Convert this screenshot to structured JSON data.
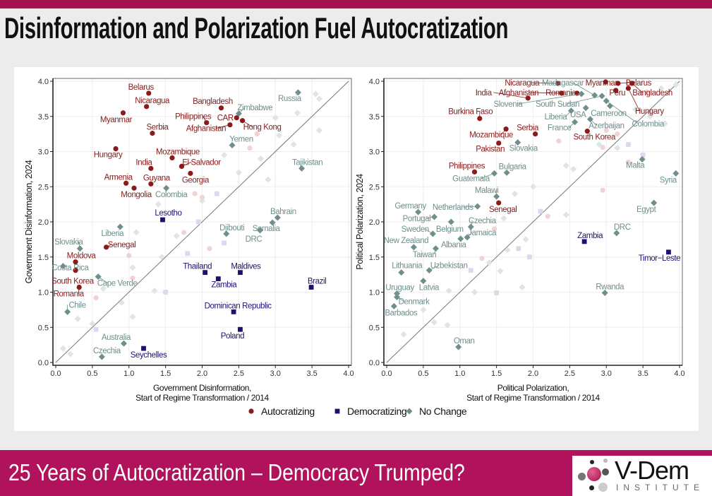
{
  "slide": {
    "title": "Disinformation and Polarization Fuel Autocratization",
    "footer_text": "25 Years of Autocratization – Democracy Trumped?",
    "logo_name": "V-Dem",
    "logo_sub": "INSTITUTE",
    "accent_color": "#b0135b"
  },
  "legend": {
    "items": [
      {
        "label": "Autocratizing",
        "group": "A",
        "shape": "circle",
        "color": "#8b1a1a"
      },
      {
        "label": "Democratizing",
        "group": "D",
        "shape": "square",
        "color": "#1f1070"
      },
      {
        "label": "No Change",
        "group": "N",
        "shape": "diamond",
        "color": "#6e8f8c"
      }
    ],
    "placement": "bottom"
  },
  "chart_data": [
    {
      "type": "scatter",
      "xlabel": [
        "Government Disinformation,",
        "Start of Regime Transformation / 2014"
      ],
      "ylabel": "Government Disinformation, 2024",
      "xlim": [
        0,
        4
      ],
      "ylim": [
        0,
        4
      ],
      "ticks": [
        "0.0",
        "0.5",
        "1.0",
        "1.5",
        "2.0",
        "2.5",
        "3.0",
        "3.5",
        "4.0"
      ],
      "grid": true,
      "diagonal_reference_line": true,
      "points": [
        {
          "label": "Belarus",
          "g": "A",
          "x": 1.27,
          "y": 3.83
        },
        {
          "label": "Nicaragua",
          "g": "A",
          "x": 1.24,
          "y": 3.64
        },
        {
          "label": "Myanmar",
          "g": "A",
          "x": 0.92,
          "y": 3.55
        },
        {
          "label": "Serbia",
          "g": "A",
          "x": 1.32,
          "y": 3.26
        },
        {
          "label": "Bangladesh",
          "g": "A",
          "x": 2.26,
          "y": 3.62
        },
        {
          "label": "Philippines",
          "g": "A",
          "x": 2.06,
          "y": 3.41
        },
        {
          "label": "CAR",
          "g": "A",
          "x": 2.47,
          "y": 3.48
        },
        {
          "label": "Afghanistan",
          "g": "A",
          "x": 2.38,
          "y": 3.38
        },
        {
          "label": "Hong Kong",
          "g": "A",
          "x": 2.55,
          "y": 3.44
        },
        {
          "label": "Hungary",
          "g": "A",
          "x": 0.82,
          "y": 3.04
        },
        {
          "label": "Mozambique",
          "g": "A",
          "x": 1.59,
          "y": 2.91
        },
        {
          "label": "India",
          "g": "A",
          "x": 1.3,
          "y": 2.76
        },
        {
          "label": "El Salvador",
          "g": "A",
          "x": 1.72,
          "y": 2.79
        },
        {
          "label": "Armenia",
          "g": "A",
          "x": 0.96,
          "y": 2.55
        },
        {
          "label": "Guyana",
          "g": "A",
          "x": 1.3,
          "y": 2.54
        },
        {
          "label": "Georgia",
          "g": "A",
          "x": 1.84,
          "y": 2.69
        },
        {
          "label": "Mongolia",
          "g": "A",
          "x": 1.07,
          "y": 2.48
        },
        {
          "label": "Senegal",
          "g": "A",
          "x": 0.69,
          "y": 1.64
        },
        {
          "label": "Moldova",
          "g": "A",
          "x": 0.27,
          "y": 1.43
        },
        {
          "label": "South Korea",
          "g": "A",
          "x": 0.27,
          "y": 1.31
        },
        {
          "label": "Romania",
          "g": "A",
          "x": 0.32,
          "y": 1.07
        },
        {
          "label": "Lesotho",
          "g": "D",
          "x": 1.46,
          "y": 2.03
        },
        {
          "label": "Thailand",
          "g": "D",
          "x": 2.04,
          "y": 1.28
        },
        {
          "label": "Zambia",
          "g": "D",
          "x": 2.22,
          "y": 1.19
        },
        {
          "label": "Maldives",
          "g": "D",
          "x": 2.52,
          "y": 1.28
        },
        {
          "label": "Brazil",
          "g": "D",
          "x": 3.49,
          "y": 1.07
        },
        {
          "label": "Dominican Republic",
          "g": "D",
          "x": 2.43,
          "y": 0.72
        },
        {
          "label": "Poland",
          "g": "D",
          "x": 2.52,
          "y": 0.47
        },
        {
          "label": "Seychelles",
          "g": "D",
          "x": 1.2,
          "y": 0.2
        },
        {
          "label": "Russia",
          "g": "N",
          "x": 3.31,
          "y": 3.84
        },
        {
          "label": "Zimbabwe",
          "g": "N",
          "x": 2.5,
          "y": 3.54
        },
        {
          "label": "Yemen",
          "g": "N",
          "x": 2.41,
          "y": 3.09
        },
        {
          "label": "Tajikistan",
          "g": "N",
          "x": 3.36,
          "y": 2.76
        },
        {
          "label": "Colombia",
          "g": "N",
          "x": 1.51,
          "y": 2.48
        },
        {
          "label": "Bahrain",
          "g": "N",
          "x": 3.03,
          "y": 2.06
        },
        {
          "label": "Somalia",
          "g": "N",
          "x": 2.96,
          "y": 1.99
        },
        {
          "label": "DRC",
          "g": "N",
          "x": 2.79,
          "y": 1.88
        },
        {
          "label": "Djibouti",
          "g": "N",
          "x": 2.33,
          "y": 1.83
        },
        {
          "label": "Liberia",
          "g": "N",
          "x": 0.88,
          "y": 1.93
        },
        {
          "label": "Slovakia",
          "g": "N",
          "x": 0.33,
          "y": 1.62
        },
        {
          "label": "Costa Rica",
          "g": "N",
          "x": 0.1,
          "y": 1.37
        },
        {
          "label": "Cape Verde",
          "g": "N",
          "x": 0.58,
          "y": 1.22
        },
        {
          "label": "Chile",
          "g": "N",
          "x": 0.16,
          "y": 0.72
        },
        {
          "label": "Australia",
          "g": "N",
          "x": 0.93,
          "y": 0.27
        },
        {
          "label": "Czechia",
          "g": "N",
          "x": 0.63,
          "y": 0.08
        }
      ],
      "faded_points": [
        {
          "g": "N",
          "x": 3.55,
          "y": 3.82
        },
        {
          "g": "N",
          "x": 3.6,
          "y": 3.75
        },
        {
          "g": "N",
          "x": 3.3,
          "y": 3.55
        },
        {
          "g": "N",
          "x": 3.0,
          "y": 3.48
        },
        {
          "g": "N",
          "x": 3.05,
          "y": 3.23
        },
        {
          "g": "N",
          "x": 3.25,
          "y": 3.1
        },
        {
          "g": "N",
          "x": 3.6,
          "y": 3.3
        },
        {
          "g": "N",
          "x": 2.3,
          "y": 2.95
        },
        {
          "g": "N",
          "x": 2.8,
          "y": 2.9
        },
        {
          "g": "N",
          "x": 2.9,
          "y": 2.6
        },
        {
          "g": "N",
          "x": 2.5,
          "y": 2.7
        },
        {
          "g": "N",
          "x": 2.0,
          "y": 2.3
        },
        {
          "g": "N",
          "x": 1.4,
          "y": 2.25
        },
        {
          "g": "N",
          "x": 1.65,
          "y": 1.8
        },
        {
          "g": "N",
          "x": 1.1,
          "y": 1.85
        },
        {
          "g": "N",
          "x": 1.45,
          "y": 1.5
        },
        {
          "g": "N",
          "x": 1.05,
          "y": 1.35
        },
        {
          "g": "N",
          "x": 0.65,
          "y": 1.05
        },
        {
          "g": "N",
          "x": 0.9,
          "y": 0.85
        },
        {
          "g": "N",
          "x": 0.3,
          "y": 0.62
        },
        {
          "g": "N",
          "x": 0.1,
          "y": 0.2
        },
        {
          "g": "N",
          "x": 0.2,
          "y": 0.12
        },
        {
          "g": "N",
          "x": 0.5,
          "y": 0.55
        },
        {
          "g": "N",
          "x": 1.05,
          "y": 0.65
        },
        {
          "g": "N",
          "x": 1.35,
          "y": 1.02
        },
        {
          "g": "A",
          "x": 2.75,
          "y": 3.25
        },
        {
          "g": "A",
          "x": 2.65,
          "y": 3.05
        },
        {
          "g": "A",
          "x": 1.9,
          "y": 2.4
        },
        {
          "g": "A",
          "x": 2.0,
          "y": 2.35
        },
        {
          "g": "A",
          "x": 1.75,
          "y": 1.85
        },
        {
          "g": "A",
          "x": 2.1,
          "y": 1.62
        },
        {
          "g": "A",
          "x": 1.0,
          "y": 1.52
        },
        {
          "g": "A",
          "x": 0.55,
          "y": 0.92
        },
        {
          "g": "A",
          "x": 1.05,
          "y": 1.2
        },
        {
          "g": "D",
          "x": 2.2,
          "y": 2.4
        },
        {
          "g": "D",
          "x": 1.95,
          "y": 2.0
        },
        {
          "g": "D",
          "x": 1.8,
          "y": 1.55
        },
        {
          "g": "D",
          "x": 2.3,
          "y": 1.7
        },
        {
          "g": "D",
          "x": 0.55,
          "y": 0.47
        },
        {
          "g": "D",
          "x": 1.5,
          "y": 1.0
        }
      ]
    },
    {
      "type": "scatter",
      "xlabel": [
        "Political Polarization,",
        "Start of Regime Transformation / 2014"
      ],
      "ylabel": "Political Polarization, 2024",
      "xlim": [
        0,
        4
      ],
      "ylim": [
        0,
        4
      ],
      "ticks": [
        "0.0",
        "0.5",
        "1.0",
        "1.5",
        "2.0",
        "2.5",
        "3.0",
        "3.5",
        "4.0"
      ],
      "grid": true,
      "diagonal_reference_line": true,
      "points": [
        {
          "label": "Nicaragua",
          "g": "A",
          "x": 2.34,
          "y": 3.97
        },
        {
          "label": "Romania",
          "g": "A",
          "x": 2.6,
          "y": 3.83
        },
        {
          "label": "Afghanistan",
          "g": "A",
          "x": 2.39,
          "y": 3.83
        },
        {
          "label": "India",
          "g": "A",
          "x": 1.93,
          "y": 3.76
        },
        {
          "label": "Myanmar",
          "g": "A",
          "x": 2.99,
          "y": 3.99
        },
        {
          "label": "Belarus",
          "g": "A",
          "x": 3.16,
          "y": 3.97
        },
        {
          "label": "Bangladesh",
          "g": "A",
          "x": 3.35,
          "y": 3.97
        },
        {
          "label": "Peru",
          "g": "A",
          "x": 3.13,
          "y": 3.87
        },
        {
          "label": "Hungary",
          "g": "A",
          "x": 3.3,
          "y": 3.9
        },
        {
          "label": "Burkina Faso",
          "g": "A",
          "x": 1.27,
          "y": 3.47
        },
        {
          "label": "Mozambique",
          "g": "A",
          "x": 1.63,
          "y": 3.32
        },
        {
          "label": "Serbia",
          "g": "A",
          "x": 2.03,
          "y": 3.25
        },
        {
          "label": "Pakistan",
          "g": "A",
          "x": 1.53,
          "y": 3.12
        },
        {
          "label": "South Korea",
          "g": "A",
          "x": 2.74,
          "y": 3.29
        },
        {
          "label": "Philippines",
          "g": "A",
          "x": 1.2,
          "y": 2.71
        },
        {
          "label": "Senegal",
          "g": "A",
          "x": 1.53,
          "y": 2.27
        },
        {
          "label": "Zambia",
          "g": "D",
          "x": 2.7,
          "y": 1.72
        },
        {
          "label": "Timor−Leste",
          "g": "D",
          "x": 3.85,
          "y": 1.57
        },
        {
          "label": "Slovenia",
          "g": "N",
          "x": 2.66,
          "y": 3.82
        },
        {
          "label": "Madagascar",
          "g": "N",
          "x": 2.84,
          "y": 3.8
        },
        {
          "label": "South Sudan",
          "g": "N",
          "x": 2.94,
          "y": 3.79
        },
        {
          "label": "Colombia",
          "g": "N",
          "x": 3.0,
          "y": 3.72
        },
        {
          "label": "Cameroon",
          "g": "N",
          "x": 3.05,
          "y": 3.65
        },
        {
          "label": "USA",
          "g": "N",
          "x": 2.72,
          "y": 3.62
        },
        {
          "label": "Liberia",
          "g": "N",
          "x": 2.52,
          "y": 3.58
        },
        {
          "label": "France",
          "g": "N",
          "x": 2.57,
          "y": 3.42
        },
        {
          "label": "Azerbaijan",
          "g": "N",
          "x": 2.78,
          "y": 3.46
        },
        {
          "label": "Slovakia",
          "g": "N",
          "x": 1.79,
          "y": 3.13
        },
        {
          "label": "Bulgaria",
          "g": "N",
          "x": 1.64,
          "y": 2.7
        },
        {
          "label": "Guatemala",
          "g": "N",
          "x": 1.47,
          "y": 2.69
        },
        {
          "label": "Malawi",
          "g": "N",
          "x": 1.5,
          "y": 2.36
        },
        {
          "label": "Netherlands",
          "g": "N",
          "x": 1.24,
          "y": 2.22
        },
        {
          "label": "Germany",
          "g": "N",
          "x": 0.43,
          "y": 2.14
        },
        {
          "label": "Portugal",
          "g": "N",
          "x": 0.65,
          "y": 2.07
        },
        {
          "label": "Malta",
          "g": "N",
          "x": 3.49,
          "y": 2.89
        },
        {
          "label": "Syria",
          "g": "N",
          "x": 3.95,
          "y": 2.69
        },
        {
          "label": "Egypt",
          "g": "N",
          "x": 3.65,
          "y": 2.27
        },
        {
          "label": "Belgium",
          "g": "N",
          "x": 0.88,
          "y": 2.0
        },
        {
          "label": "Czechia",
          "g": "N",
          "x": 1.15,
          "y": 1.93
        },
        {
          "label": "Jamaica",
          "g": "N",
          "x": 1.1,
          "y": 1.78
        },
        {
          "label": "Albania",
          "g": "N",
          "x": 1.01,
          "y": 1.76
        },
        {
          "label": "Sweden",
          "g": "N",
          "x": 0.63,
          "y": 1.83
        },
        {
          "label": "New Zealand",
          "g": "N",
          "x": 0.37,
          "y": 1.64
        },
        {
          "label": "Taiwan",
          "g": "N",
          "x": 0.67,
          "y": 1.62
        },
        {
          "label": "Lithuania",
          "g": "N",
          "x": 0.2,
          "y": 1.28
        },
        {
          "label": "Uzbekistan",
          "g": "N",
          "x": 0.58,
          "y": 1.31
        },
        {
          "label": "Latvia",
          "g": "N",
          "x": 0.5,
          "y": 1.16
        },
        {
          "label": "Uruguay",
          "g": "N",
          "x": 0.14,
          "y": 0.98
        },
        {
          "label": "Denmark",
          "g": "N",
          "x": 0.14,
          "y": 0.93
        },
        {
          "label": "Barbados",
          "g": "N",
          "x": 0.1,
          "y": 0.8
        },
        {
          "label": "Oman",
          "g": "N",
          "x": 0.98,
          "y": 0.22
        },
        {
          "label": "DRC",
          "g": "N",
          "x": 3.14,
          "y": 1.84
        },
        {
          "label": "Rwanda",
          "g": "N",
          "x": 2.98,
          "y": 0.99
        }
      ],
      "faded_points": [
        {
          "g": "N",
          "x": 3.75,
          "y": 3.9
        },
        {
          "g": "N",
          "x": 3.95,
          "y": 3.95
        },
        {
          "g": "N",
          "x": 3.4,
          "y": 3.6
        },
        {
          "g": "N",
          "x": 3.6,
          "y": 3.5
        },
        {
          "g": "N",
          "x": 3.8,
          "y": 3.4
        },
        {
          "g": "N",
          "x": 2.9,
          "y": 3.1
        },
        {
          "g": "N",
          "x": 3.15,
          "y": 3.05
        },
        {
          "g": "N",
          "x": 2.45,
          "y": 2.8
        },
        {
          "g": "N",
          "x": 2.55,
          "y": 2.75
        },
        {
          "g": "N",
          "x": 2.0,
          "y": 2.5
        },
        {
          "g": "N",
          "x": 1.75,
          "y": 2.4
        },
        {
          "g": "N",
          "x": 1.6,
          "y": 2.05
        },
        {
          "g": "N",
          "x": 1.9,
          "y": 1.75
        },
        {
          "g": "N",
          "x": 1.65,
          "y": 1.6
        },
        {
          "g": "N",
          "x": 1.4,
          "y": 1.42
        },
        {
          "g": "N",
          "x": 1.55,
          "y": 1.3
        },
        {
          "g": "N",
          "x": 1.2,
          "y": 1.0
        },
        {
          "g": "N",
          "x": 1.85,
          "y": 1.07
        },
        {
          "g": "N",
          "x": 0.85,
          "y": 1.02
        },
        {
          "g": "N",
          "x": 0.5,
          "y": 0.75
        },
        {
          "g": "N",
          "x": 0.65,
          "y": 0.57
        },
        {
          "g": "N",
          "x": 0.83,
          "y": 0.53
        },
        {
          "g": "N",
          "x": 0.23,
          "y": 0.4
        },
        {
          "g": "N",
          "x": 2.45,
          "y": 2.1
        },
        {
          "g": "A",
          "x": 3.55,
          "y": 3.85
        },
        {
          "g": "A",
          "x": 3.0,
          "y": 3.3
        },
        {
          "g": "A",
          "x": 3.15,
          "y": 3.25
        },
        {
          "g": "A",
          "x": 2.35,
          "y": 3.15
        },
        {
          "g": "A",
          "x": 2.95,
          "y": 3.06
        },
        {
          "g": "A",
          "x": 3.3,
          "y": 2.85
        },
        {
          "g": "A",
          "x": 1.3,
          "y": 1.48
        },
        {
          "g": "A",
          "x": 1.47,
          "y": 1.9
        },
        {
          "g": "A",
          "x": 2.2,
          "y": 2.08
        },
        {
          "g": "A",
          "x": 2.95,
          "y": 2.45
        },
        {
          "g": "D",
          "x": 3.6,
          "y": 3.55
        },
        {
          "g": "D",
          "x": 3.3,
          "y": 3.1
        },
        {
          "g": "D",
          "x": 3.5,
          "y": 2.95
        },
        {
          "g": "D",
          "x": 1.8,
          "y": 1.62
        },
        {
          "g": "D",
          "x": 1.95,
          "y": 1.5
        },
        {
          "g": "D",
          "x": 1.15,
          "y": 1.31
        },
        {
          "g": "D",
          "x": 1.5,
          "y": 0.99
        },
        {
          "g": "D",
          "x": 2.1,
          "y": 2.15
        }
      ]
    }
  ]
}
